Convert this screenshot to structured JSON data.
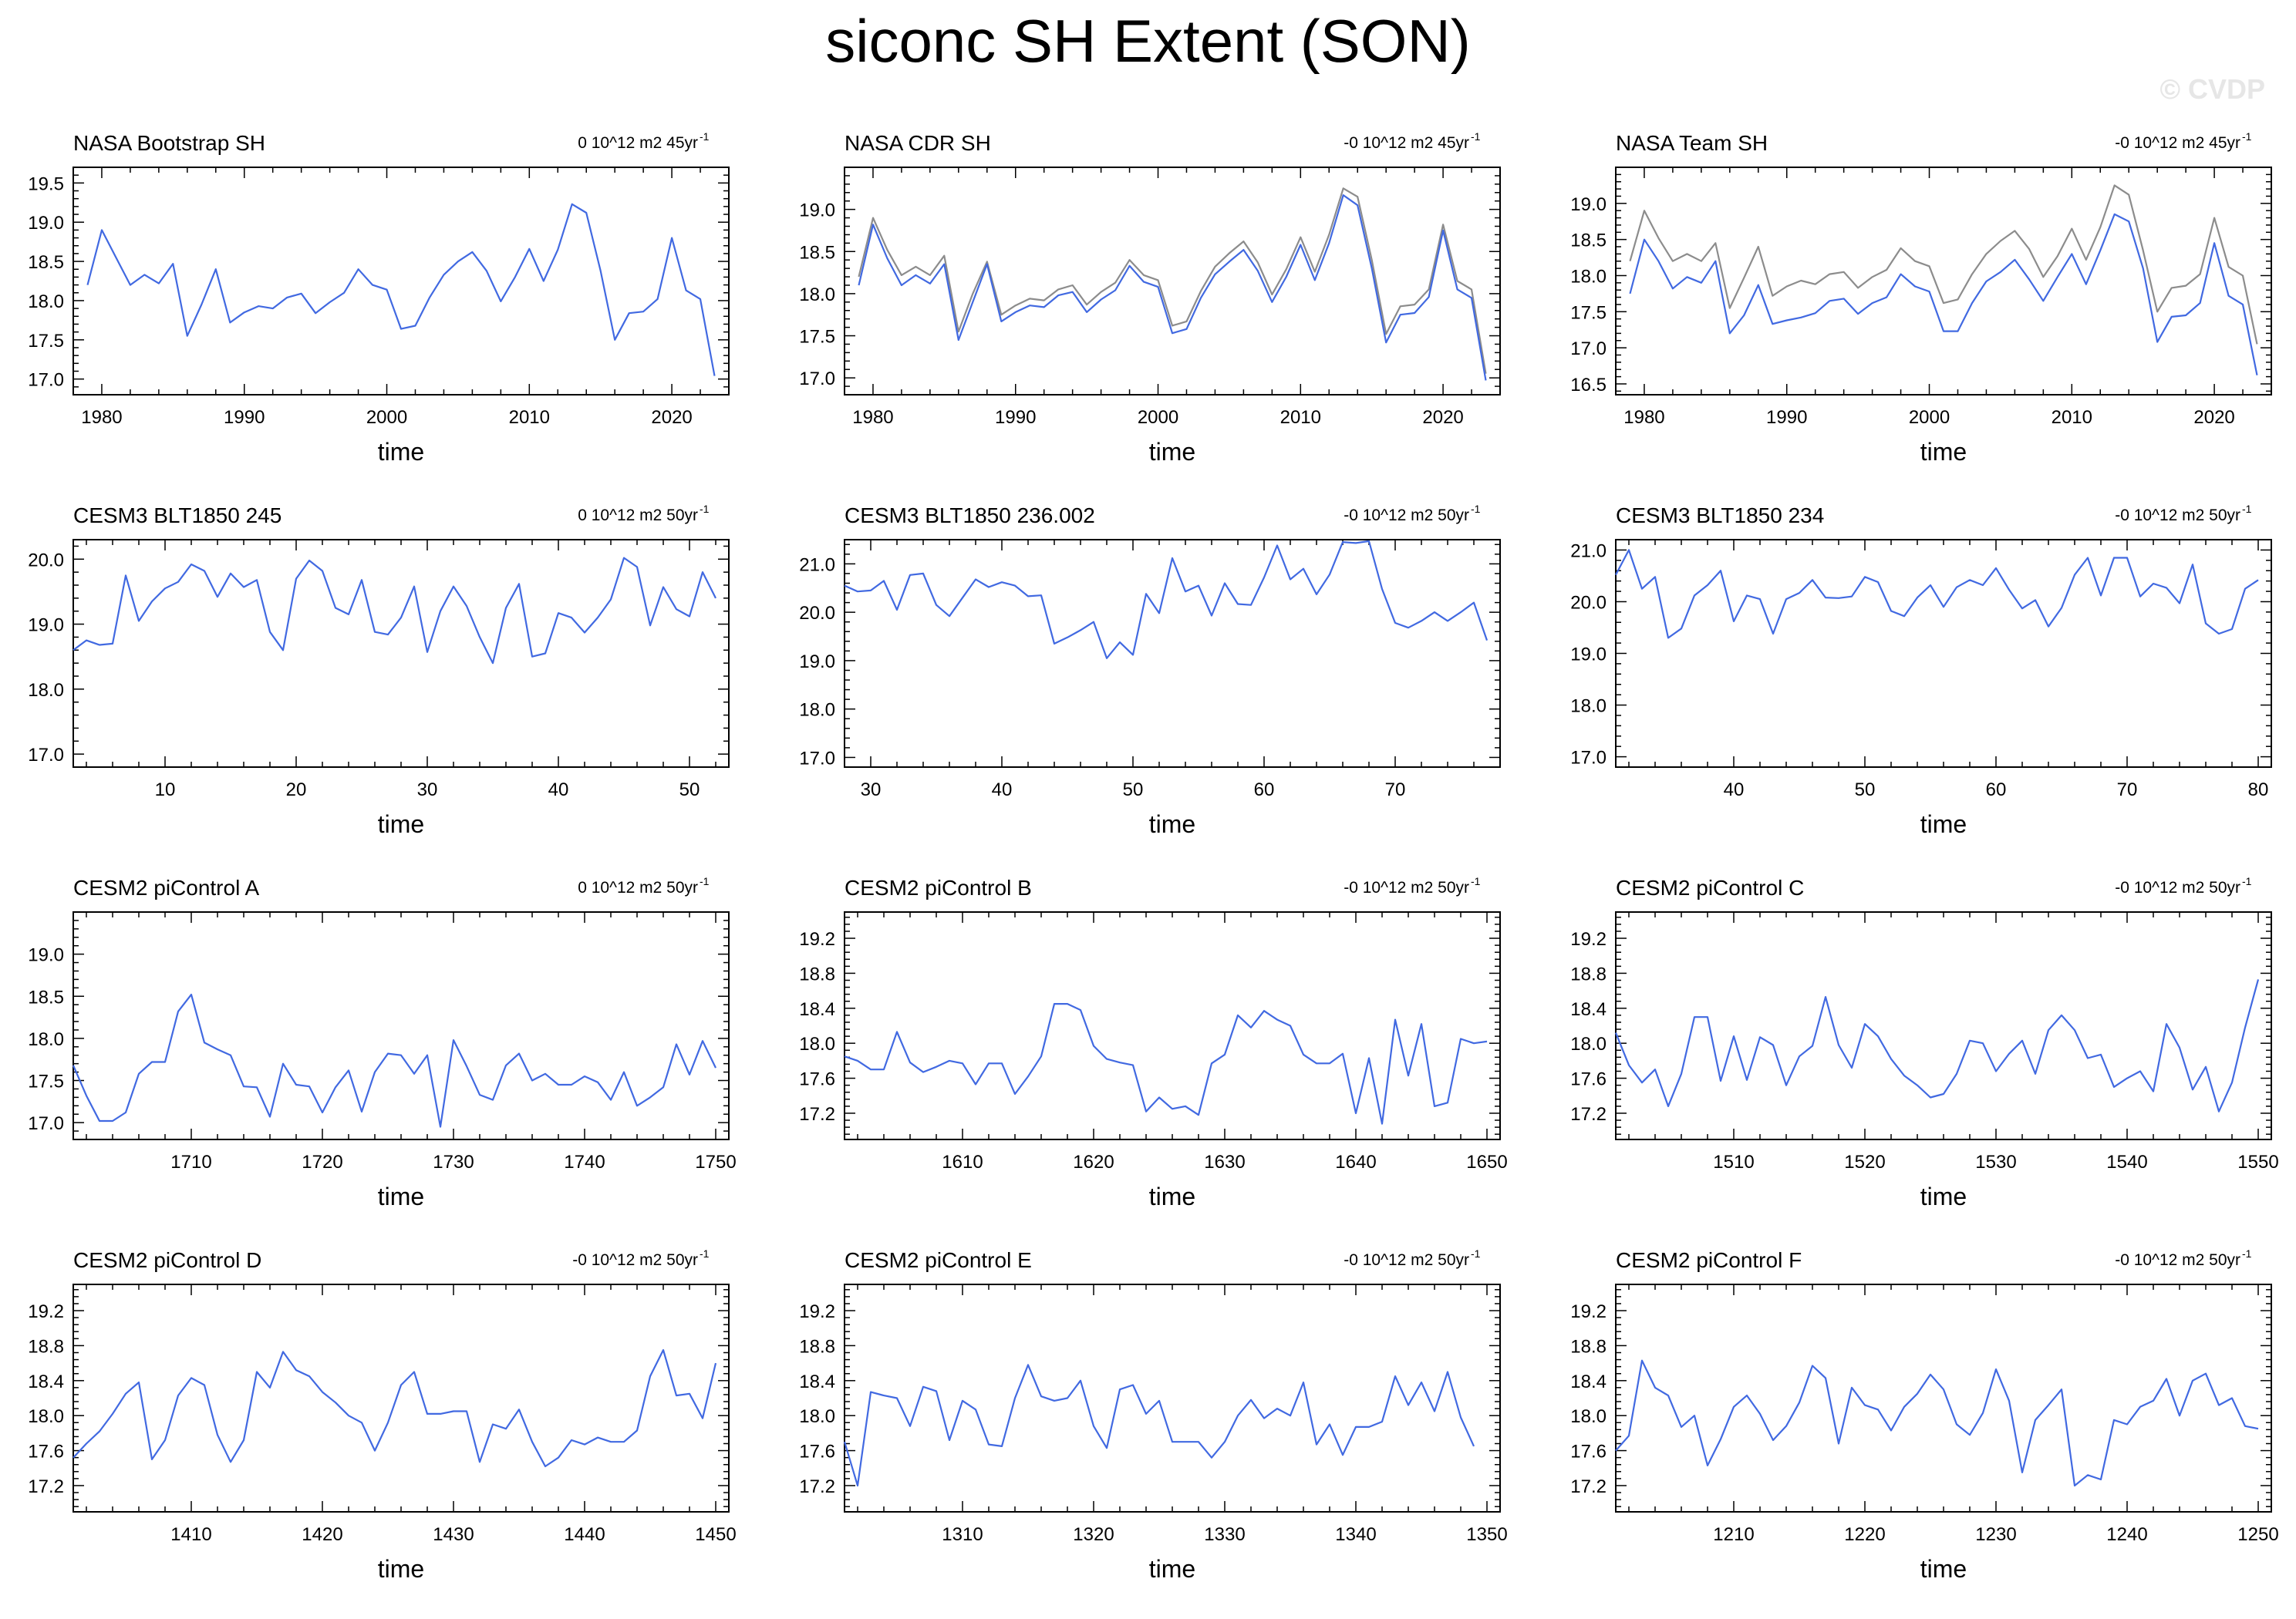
{
  "title": "siconc SH Extent (SON)",
  "watermark": "© CVDP",
  "colors": {
    "model": "#4169e1",
    "obs_alt": "#8c8c8c",
    "axis": "#000000"
  },
  "chart_data": [
    {
      "type": "line",
      "title": "NASA Bootstrap SH",
      "trend": "0 10^12 m2 45yr",
      "xlabel": "time",
      "ylim": [
        16.8,
        19.7
      ],
      "xlim": [
        1978,
        2024
      ],
      "yticks": [
        17.0,
        17.5,
        18.0,
        18.5,
        19.0,
        19.5
      ],
      "xticks": [
        1980,
        1990,
        2000,
        2010,
        2020
      ],
      "x_start": 1979,
      "series": [
        {
          "values": [
            18.2,
            18.9,
            18.55,
            18.2,
            18.33,
            18.22,
            18.47,
            17.55,
            17.95,
            18.4,
            17.72,
            17.85,
            17.93,
            17.9,
            18.04,
            18.09,
            17.84,
            17.98,
            18.1,
            18.4,
            18.2,
            18.14,
            17.64,
            17.68,
            18.04,
            18.33,
            18.5,
            18.62,
            18.38,
            17.99,
            18.3,
            18.66,
            18.25,
            18.65,
            19.23,
            19.12,
            18.38,
            17.5,
            17.84,
            17.86,
            18.02,
            18.8,
            18.13,
            18.02,
            17.04
          ]
        }
      ]
    },
    {
      "type": "line",
      "title": "NASA CDR SH",
      "trend": "-0 10^12 m2 45yr",
      "xlabel": "time",
      "ylim": [
        16.8,
        19.5
      ],
      "xlim": [
        1978,
        2024
      ],
      "yticks": [
        17.0,
        17.5,
        18.0,
        18.5,
        19.0
      ],
      "xticks": [
        1980,
        1990,
        2000,
        2010,
        2020
      ],
      "x_start": 1979,
      "series": [
        {
          "values": [
            18.1,
            18.82,
            18.42,
            18.1,
            18.22,
            18.12,
            18.35,
            17.45,
            17.9,
            18.35,
            17.67,
            17.78,
            17.86,
            17.84,
            17.98,
            18.02,
            17.78,
            17.93,
            18.04,
            18.33,
            18.14,
            18.08,
            17.53,
            17.58,
            17.95,
            18.23,
            18.38,
            18.52,
            18.27,
            17.9,
            18.2,
            18.58,
            18.16,
            18.6,
            19.17,
            19.05,
            18.3,
            17.42,
            17.75,
            17.77,
            17.96,
            18.75,
            18.05,
            17.95,
            16.97
          ]
        },
        {
          "values": [
            18.2,
            18.9,
            18.52,
            18.22,
            18.32,
            18.22,
            18.45,
            17.55,
            18.0,
            18.38,
            17.75,
            17.86,
            17.94,
            17.92,
            18.05,
            18.1,
            17.87,
            18.02,
            18.13,
            18.4,
            18.22,
            18.16,
            17.62,
            17.67,
            18.03,
            18.32,
            18.48,
            18.62,
            18.37,
            17.99,
            18.29,
            18.67,
            18.26,
            18.7,
            19.25,
            19.15,
            18.4,
            17.52,
            17.85,
            17.87,
            18.05,
            18.82,
            18.15,
            18.05,
            17.05
          ]
        }
      ]
    },
    {
      "type": "line",
      "title": "NASA Team SH",
      "trend": "-0 10^12 m2 45yr",
      "xlabel": "time",
      "ylim": [
        16.35,
        19.5
      ],
      "xlim": [
        1978,
        2024
      ],
      "yticks": [
        16.5,
        17.0,
        17.5,
        18.0,
        18.5,
        19.0
      ],
      "xticks": [
        1980,
        1990,
        2000,
        2010,
        2020
      ],
      "x_start": 1979,
      "series": [
        {
          "values": [
            17.75,
            18.5,
            18.2,
            17.82,
            17.98,
            17.9,
            18.2,
            17.2,
            17.45,
            17.87,
            17.33,
            17.38,
            17.42,
            17.48,
            17.65,
            17.68,
            17.47,
            17.62,
            17.7,
            18.02,
            17.85,
            17.78,
            17.23,
            17.23,
            17.62,
            17.92,
            18.05,
            18.22,
            17.95,
            17.65,
            17.98,
            18.3,
            17.88,
            18.35,
            18.85,
            18.75,
            18.1,
            17.08,
            17.43,
            17.45,
            17.62,
            18.45,
            17.72,
            17.6,
            16.62
          ]
        },
        {
          "values": [
            18.2,
            18.9,
            18.52,
            18.2,
            18.3,
            18.2,
            18.45,
            17.55,
            17.97,
            18.4,
            17.72,
            17.85,
            17.93,
            17.88,
            18.02,
            18.05,
            17.83,
            17.98,
            18.08,
            18.38,
            18.2,
            18.13,
            17.62,
            17.67,
            18.02,
            18.3,
            18.48,
            18.62,
            18.37,
            17.98,
            18.27,
            18.65,
            18.22,
            18.67,
            19.25,
            19.12,
            18.35,
            17.5,
            17.83,
            17.86,
            18.02,
            18.8,
            18.12,
            18.0,
            17.05
          ]
        }
      ]
    },
    {
      "type": "line",
      "title": "CESM3 BLT1850 245",
      "trend": "0 10^12 m2 50yr",
      "xlabel": "time",
      "ylim": [
        16.8,
        20.3
      ],
      "xlim": [
        3,
        53
      ],
      "yticks": [
        17.0,
        18.0,
        19.0,
        20.0
      ],
      "xticks": [
        10,
        20,
        30,
        40,
        50
      ],
      "x_start": 3,
      "series": [
        {
          "values": [
            18.6,
            18.75,
            18.68,
            18.7,
            19.75,
            19.05,
            19.35,
            19.55,
            19.65,
            19.92,
            19.82,
            19.42,
            19.78,
            19.57,
            19.68,
            18.88,
            18.6,
            19.7,
            19.98,
            19.82,
            19.25,
            19.15,
            19.68,
            18.88,
            18.84,
            19.1,
            19.58,
            18.57,
            19.2,
            19.58,
            19.28,
            18.8,
            18.4,
            19.25,
            19.62,
            18.5,
            18.55,
            19.17,
            19.1,
            18.87,
            19.1,
            19.38,
            20.02,
            19.88,
            18.98,
            19.57,
            19.23,
            19.12,
            19.8,
            19.4
          ]
        }
      ]
    },
    {
      "type": "line",
      "title": "CESM3 BLT1850 236.002",
      "trend": "-0 10^12 m2 50yr",
      "xlabel": "time",
      "ylim": [
        16.8,
        21.5
      ],
      "xlim": [
        28,
        78
      ],
      "yticks": [
        17.0,
        18.0,
        19.0,
        20.0,
        21.0
      ],
      "xticks": [
        30,
        40,
        50,
        60,
        70
      ],
      "x_start": 28,
      "series": [
        {
          "values": [
            20.55,
            20.43,
            20.45,
            20.65,
            20.05,
            20.77,
            20.8,
            20.15,
            19.92,
            20.3,
            20.68,
            20.52,
            20.62,
            20.55,
            20.33,
            20.35,
            19.35,
            19.48,
            19.63,
            19.8,
            19.05,
            19.38,
            19.12,
            20.38,
            19.98,
            21.12,
            20.43,
            20.55,
            19.93,
            20.6,
            20.17,
            20.15,
            20.72,
            21.38,
            20.68,
            20.9,
            20.37,
            20.78,
            21.45,
            21.43,
            21.47,
            20.48,
            19.78,
            19.68,
            19.82,
            20.0,
            19.82,
            20.0,
            20.2,
            19.42
          ]
        }
      ]
    },
    {
      "type": "line",
      "title": "CESM3 BLT1850 234",
      "trend": "-0 10^12 m2 50yr",
      "xlabel": "time",
      "ylim": [
        16.8,
        21.2
      ],
      "xlim": [
        31,
        81
      ],
      "yticks": [
        17.0,
        18.0,
        19.0,
        20.0,
        21.0
      ],
      "xticks": [
        40,
        50,
        60,
        70,
        80
      ],
      "x_start": 31,
      "series": [
        {
          "values": [
            20.52,
            21.0,
            20.25,
            20.48,
            19.3,
            19.48,
            20.12,
            20.32,
            20.6,
            19.62,
            20.12,
            20.05,
            19.38,
            20.05,
            20.17,
            20.42,
            20.08,
            20.07,
            20.1,
            20.48,
            20.38,
            19.82,
            19.72,
            20.08,
            20.32,
            19.9,
            20.28,
            20.42,
            20.32,
            20.65,
            20.23,
            19.87,
            20.03,
            19.52,
            19.88,
            20.52,
            20.85,
            20.12,
            20.85,
            20.85,
            20.1,
            20.35,
            20.27,
            19.97,
            20.72,
            19.58,
            19.38,
            19.47,
            20.25,
            20.42
          ]
        }
      ]
    },
    {
      "type": "line",
      "title": "CESM2 piControl A",
      "trend": "0 10^12 m2 50yr",
      "xlabel": "time",
      "ylim": [
        16.8,
        19.5
      ],
      "xlim": [
        1701,
        1751
      ],
      "yticks": [
        17.0,
        17.5,
        18.0,
        18.5,
        19.0
      ],
      "xticks": [
        1710,
        1720,
        1730,
        1740,
        1750
      ],
      "x_start": 1701,
      "series": [
        {
          "values": [
            17.68,
            17.32,
            17.02,
            17.02,
            17.12,
            17.58,
            17.72,
            17.72,
            18.32,
            18.52,
            17.95,
            17.87,
            17.8,
            17.43,
            17.42,
            17.07,
            17.7,
            17.45,
            17.43,
            17.12,
            17.42,
            17.62,
            17.13,
            17.6,
            17.82,
            17.8,
            17.58,
            17.8,
            16.95,
            17.98,
            17.67,
            17.33,
            17.27,
            17.68,
            17.82,
            17.5,
            17.58,
            17.45,
            17.45,
            17.55,
            17.48,
            17.27,
            17.6,
            17.2,
            17.3,
            17.42,
            17.93,
            17.57,
            17.97,
            17.65
          ]
        }
      ]
    },
    {
      "type": "line",
      "title": "CESM2 piControl B",
      "trend": "-0 10^12 m2 50yr",
      "xlabel": "time",
      "ylim": [
        16.9,
        19.5
      ],
      "xlim": [
        1601,
        1651
      ],
      "yticks": [
        17.2,
        17.6,
        18.0,
        18.4,
        18.8,
        19.2
      ],
      "xticks": [
        1610,
        1620,
        1630,
        1640,
        1650
      ],
      "x_start": 1601,
      "series": [
        {
          "values": [
            17.85,
            17.8,
            17.7,
            17.7,
            18.13,
            17.78,
            17.67,
            17.73,
            17.8,
            17.77,
            17.53,
            17.77,
            17.77,
            17.42,
            17.62,
            17.85,
            18.45,
            18.45,
            18.38,
            17.97,
            17.82,
            17.78,
            17.75,
            17.22,
            17.38,
            17.25,
            17.28,
            17.18,
            17.77,
            17.87,
            18.32,
            18.18,
            18.37,
            18.27,
            18.2,
            17.87,
            17.77,
            17.77,
            17.88,
            17.2,
            17.83,
            17.08,
            18.27,
            17.63,
            18.22,
            17.28,
            17.32,
            18.05,
            18.0,
            18.02
          ]
        }
      ]
    },
    {
      "type": "line",
      "title": "CESM2 piControl C",
      "trend": "-0 10^12 m2 50yr",
      "xlabel": "time",
      "ylim": [
        16.9,
        19.5
      ],
      "xlim": [
        1501,
        1551
      ],
      "yticks": [
        17.2,
        17.6,
        18.0,
        18.4,
        18.8,
        19.2
      ],
      "xticks": [
        1510,
        1520,
        1530,
        1540,
        1550
      ],
      "x_start": 1501,
      "series": [
        {
          "values": [
            18.12,
            17.75,
            17.55,
            17.7,
            17.28,
            17.65,
            18.3,
            18.3,
            17.57,
            18.08,
            17.58,
            18.07,
            17.98,
            17.52,
            17.85,
            17.97,
            18.53,
            17.98,
            17.72,
            18.22,
            18.08,
            17.82,
            17.63,
            17.52,
            17.38,
            17.42,
            17.65,
            18.03,
            18.0,
            17.68,
            17.88,
            18.03,
            17.65,
            18.15,
            18.32,
            18.15,
            17.83,
            17.87,
            17.5,
            17.6,
            17.68,
            17.45,
            18.22,
            17.95,
            17.47,
            17.73,
            17.22,
            17.55,
            18.18,
            18.73
          ]
        }
      ]
    },
    {
      "type": "line",
      "title": "CESM2 piControl D",
      "trend": "-0 10^12 m2 50yr",
      "xlabel": "time",
      "ylim": [
        16.9,
        19.5
      ],
      "xlim": [
        1401,
        1451
      ],
      "yticks": [
        17.2,
        17.6,
        18.0,
        18.4,
        18.8,
        19.2
      ],
      "xticks": [
        1410,
        1420,
        1430,
        1440,
        1450
      ],
      "x_start": 1401,
      "series": [
        {
          "values": [
            17.52,
            17.68,
            17.82,
            18.02,
            18.25,
            18.38,
            17.5,
            17.72,
            18.23,
            18.43,
            18.35,
            17.78,
            17.47,
            17.72,
            18.5,
            18.32,
            18.73,
            18.52,
            18.45,
            18.27,
            18.15,
            18.0,
            17.92,
            17.6,
            17.92,
            18.35,
            18.5,
            18.02,
            18.02,
            18.05,
            18.05,
            17.47,
            17.9,
            17.85,
            18.07,
            17.7,
            17.42,
            17.52,
            17.72,
            17.67,
            17.75,
            17.7,
            17.7,
            17.83,
            18.45,
            18.75,
            18.23,
            18.25,
            17.97,
            18.6
          ]
        }
      ]
    },
    {
      "type": "line",
      "title": "CESM2 piControl E",
      "trend": "-0 10^12 m2 50yr",
      "xlabel": "time",
      "ylim": [
        16.9,
        19.5
      ],
      "xlim": [
        1301,
        1351
      ],
      "yticks": [
        17.2,
        17.6,
        18.0,
        18.4,
        18.8,
        19.2
      ],
      "xticks": [
        1310,
        1320,
        1330,
        1340,
        1350
      ],
      "x_start": 1301,
      "series": [
        {
          "values": [
            17.7,
            17.2,
            18.27,
            18.23,
            18.2,
            17.88,
            18.33,
            18.28,
            17.72,
            18.17,
            18.07,
            17.67,
            17.65,
            18.2,
            18.58,
            18.22,
            18.17,
            18.2,
            18.4,
            17.88,
            17.63,
            18.3,
            18.35,
            18.02,
            18.17,
            17.7,
            17.7,
            17.7,
            17.52,
            17.7,
            18.0,
            18.18,
            17.97,
            18.08,
            18.0,
            18.38,
            17.67,
            17.9,
            17.55,
            17.87,
            17.87,
            17.93,
            18.45,
            18.12,
            18.38,
            18.05,
            18.5,
            17.98,
            17.65
          ]
        }
      ]
    },
    {
      "type": "line",
      "title": "CESM2 piControl F",
      "trend": "-0 10^12 m2 50yr",
      "xlabel": "time",
      "ylim": [
        16.9,
        19.5
      ],
      "xlim": [
        1201,
        1251
      ],
      "yticks": [
        17.2,
        17.6,
        18.0,
        18.4,
        18.8,
        19.2
      ],
      "xticks": [
        1210,
        1220,
        1230,
        1240,
        1250
      ],
      "x_start": 1201,
      "series": [
        {
          "values": [
            17.6,
            17.77,
            18.63,
            18.32,
            18.23,
            17.87,
            18.0,
            17.43,
            17.73,
            18.1,
            18.23,
            18.02,
            17.72,
            17.88,
            18.15,
            18.57,
            18.43,
            17.68,
            18.32,
            18.12,
            18.07,
            17.83,
            18.1,
            18.25,
            18.47,
            18.3,
            17.9,
            17.78,
            18.03,
            18.53,
            18.17,
            17.35,
            17.95,
            18.12,
            18.3,
            17.2,
            17.32,
            17.27,
            17.95,
            17.9,
            18.1,
            18.17,
            18.42,
            18.0,
            18.4,
            18.48,
            18.12,
            18.2,
            17.88,
            17.85
          ]
        }
      ]
    }
  ]
}
